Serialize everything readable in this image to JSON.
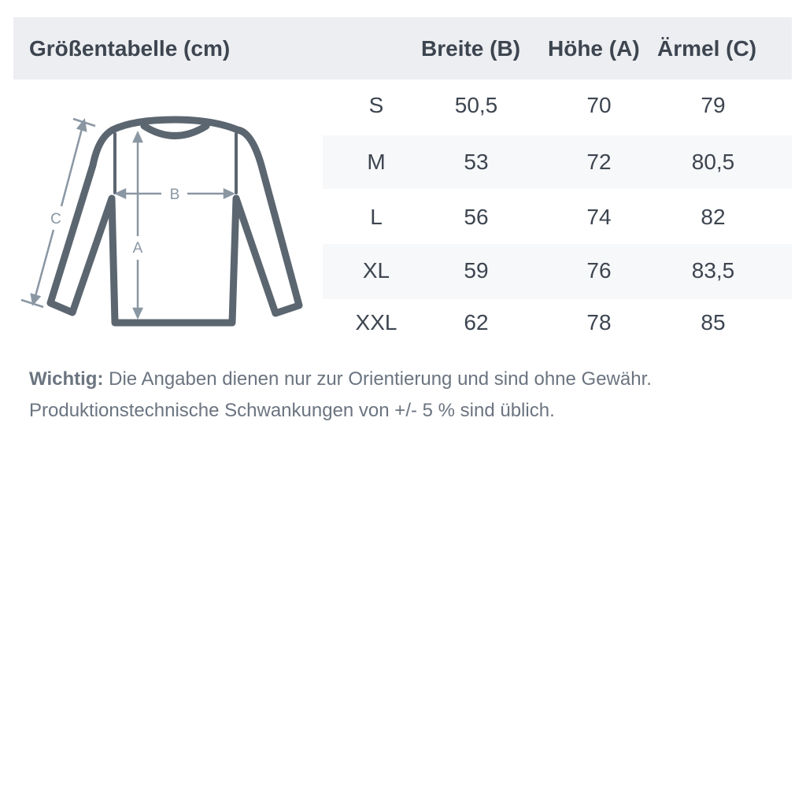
{
  "header": {
    "title": "Größentabelle (cm)",
    "columns": [
      "Breite (B)",
      "Höhe (A)",
      "Ärmel (C)"
    ]
  },
  "rows": [
    {
      "size": "S",
      "breite": "50,5",
      "hoehe": "70",
      "aermel": "79"
    },
    {
      "size": "M",
      "breite": "53",
      "hoehe": "72",
      "aermel": "80,5"
    },
    {
      "size": "L",
      "breite": "56",
      "hoehe": "74",
      "aermel": "82"
    },
    {
      "size": "XL",
      "breite": "59",
      "hoehe": "76",
      "aermel": "83,5"
    },
    {
      "size": "XXL",
      "breite": "62",
      "hoehe": "78",
      "aermel": "85"
    }
  ],
  "diagram": {
    "label_a": "A",
    "label_b": "B",
    "label_c": "C"
  },
  "note": {
    "bold": "Wichtig:",
    "line1": " Die Angaben dienen nur zur Orientierung und sind ohne Gewähr.",
    "line2": "Produktionstechnische Schwankungen von +/- 5 % sind üblich."
  },
  "colors": {
    "header_bg": "#eceef1",
    "stripe_bg": "#f7f8f9",
    "garment": "#5b6670",
    "measure": "#8a97a3"
  }
}
